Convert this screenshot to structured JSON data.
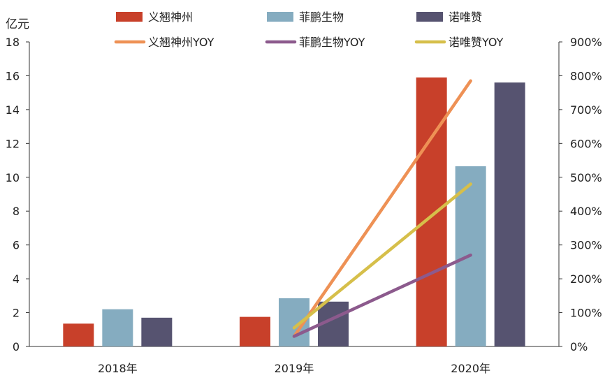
{
  "chart_data": {
    "type": "bar",
    "left_axis_label": "亿元",
    "categories": [
      "2018年",
      "2019年",
      "2020年"
    ],
    "ylim": [
      0,
      18
    ],
    "y_ticks": [
      "0",
      "2",
      "4",
      "6",
      "8",
      "10",
      "12",
      "14",
      "16",
      "18"
    ],
    "y2lim": [
      0,
      900
    ],
    "y2_ticks": [
      "0%",
      "100%",
      "200%",
      "300%",
      "400%",
      "500%",
      "600%",
      "700%",
      "800%",
      "900%"
    ],
    "series": [
      {
        "name": "义翘神州",
        "kind": "bar",
        "axis": "left",
        "color": "#c8402a",
        "values": [
          1.35,
          1.75,
          15.9
        ]
      },
      {
        "name": "菲鹏生物",
        "kind": "bar",
        "axis": "left",
        "color": "#85acc0",
        "values": [
          2.2,
          2.85,
          10.65
        ]
      },
      {
        "name": "诺唯赞",
        "kind": "bar",
        "axis": "left",
        "color": "#565370",
        "values": [
          1.7,
          2.65,
          15.6
        ]
      },
      {
        "name": "义翘神州YOY",
        "kind": "line",
        "axis": "right",
        "color": "#ee9155",
        "values": [
          null,
          30,
          785
        ]
      },
      {
        "name": "菲鹏生物YOY",
        "kind": "line",
        "axis": "right",
        "color": "#8c5a8d",
        "values": [
          null,
          30,
          270
        ]
      },
      {
        "name": "诺唯赞YOY",
        "kind": "line",
        "axis": "right",
        "color": "#d6bf4a",
        "values": [
          null,
          55,
          480
        ]
      }
    ],
    "legend_position": "top",
    "grid": false
  }
}
